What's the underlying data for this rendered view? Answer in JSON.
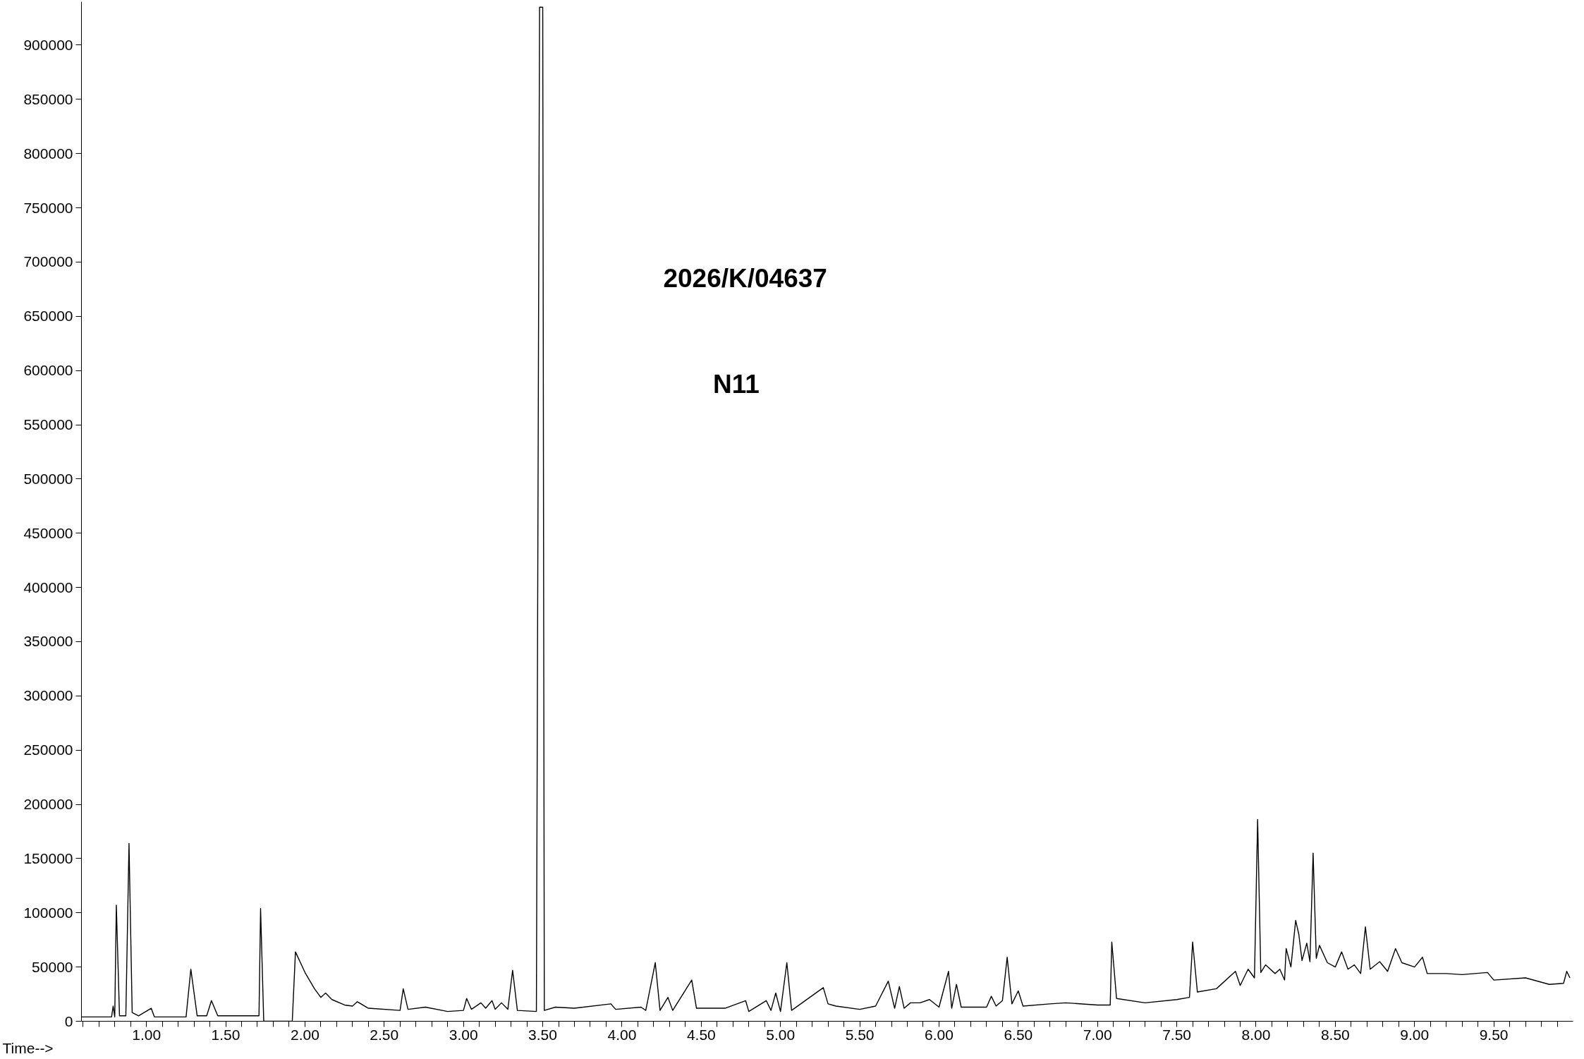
{
  "chart_data": {
    "type": "line",
    "xlabel": "Time-->",
    "annotations": [
      "2026/K/04637",
      "N11"
    ],
    "xlim": [
      0.59,
      10.0
    ],
    "ylim": [
      0,
      940000
    ],
    "xticks": [
      {
        "value": 0.6,
        "label": null
      },
      {
        "value": 0.7,
        "label": null
      },
      {
        "value": 0.8,
        "label": null
      },
      {
        "value": 0.9,
        "label": null
      },
      {
        "value": 1.0,
        "label": "1.00"
      },
      {
        "value": 1.1,
        "label": null
      },
      {
        "value": 1.2,
        "label": null
      },
      {
        "value": 1.3,
        "label": null
      },
      {
        "value": 1.4,
        "label": null
      },
      {
        "value": 1.5,
        "label": "1.50"
      },
      {
        "value": 1.6,
        "label": null
      },
      {
        "value": 1.7,
        "label": null
      },
      {
        "value": 1.8,
        "label": null
      },
      {
        "value": 1.9,
        "label": null
      },
      {
        "value": 2.0,
        "label": "2.00"
      },
      {
        "value": 2.1,
        "label": null
      },
      {
        "value": 2.2,
        "label": null
      },
      {
        "value": 2.3,
        "label": null
      },
      {
        "value": 2.4,
        "label": null
      },
      {
        "value": 2.5,
        "label": "2.50"
      },
      {
        "value": 2.6,
        "label": null
      },
      {
        "value": 2.7,
        "label": null
      },
      {
        "value": 2.8,
        "label": null
      },
      {
        "value": 2.9,
        "label": null
      },
      {
        "value": 3.0,
        "label": "3.00"
      },
      {
        "value": 3.1,
        "label": null
      },
      {
        "value": 3.2,
        "label": null
      },
      {
        "value": 3.3,
        "label": null
      },
      {
        "value": 3.4,
        "label": null
      },
      {
        "value": 3.5,
        "label": "3.50"
      },
      {
        "value": 3.6,
        "label": null
      },
      {
        "value": 3.7,
        "label": null
      },
      {
        "value": 3.8,
        "label": null
      },
      {
        "value": 3.9,
        "label": null
      },
      {
        "value": 4.0,
        "label": "4.00"
      },
      {
        "value": 4.1,
        "label": null
      },
      {
        "value": 4.2,
        "label": null
      },
      {
        "value": 4.3,
        "label": null
      },
      {
        "value": 4.4,
        "label": null
      },
      {
        "value": 4.5,
        "label": "4.50"
      },
      {
        "value": 4.6,
        "label": null
      },
      {
        "value": 4.7,
        "label": null
      },
      {
        "value": 4.8,
        "label": null
      },
      {
        "value": 4.9,
        "label": null
      },
      {
        "value": 5.0,
        "label": "5.00"
      },
      {
        "value": 5.1,
        "label": null
      },
      {
        "value": 5.2,
        "label": null
      },
      {
        "value": 5.3,
        "label": null
      },
      {
        "value": 5.4,
        "label": null
      },
      {
        "value": 5.5,
        "label": "5.50"
      },
      {
        "value": 5.6,
        "label": null
      },
      {
        "value": 5.7,
        "label": null
      },
      {
        "value": 5.8,
        "label": null
      },
      {
        "value": 5.9,
        "label": null
      },
      {
        "value": 6.0,
        "label": "6.00"
      },
      {
        "value": 6.1,
        "label": null
      },
      {
        "value": 6.2,
        "label": null
      },
      {
        "value": 6.3,
        "label": null
      },
      {
        "value": 6.4,
        "label": null
      },
      {
        "value": 6.5,
        "label": "6.50"
      },
      {
        "value": 6.6,
        "label": null
      },
      {
        "value": 6.7,
        "label": null
      },
      {
        "value": 6.8,
        "label": null
      },
      {
        "value": 6.9,
        "label": null
      },
      {
        "value": 7.0,
        "label": "7.00"
      },
      {
        "value": 7.1,
        "label": null
      },
      {
        "value": 7.2,
        "label": null
      },
      {
        "value": 7.3,
        "label": null
      },
      {
        "value": 7.4,
        "label": null
      },
      {
        "value": 7.5,
        "label": "7.50"
      },
      {
        "value": 7.6,
        "label": null
      },
      {
        "value": 7.7,
        "label": null
      },
      {
        "value": 7.8,
        "label": null
      },
      {
        "value": 7.9,
        "label": null
      },
      {
        "value": 8.0,
        "label": "8.00"
      },
      {
        "value": 8.1,
        "label": null
      },
      {
        "value": 8.2,
        "label": null
      },
      {
        "value": 8.3,
        "label": null
      },
      {
        "value": 8.4,
        "label": null
      },
      {
        "value": 8.5,
        "label": "8.50"
      },
      {
        "value": 8.6,
        "label": null
      },
      {
        "value": 8.7,
        "label": null
      },
      {
        "value": 8.8,
        "label": null
      },
      {
        "value": 8.9,
        "label": null
      },
      {
        "value": 9.0,
        "label": "9.00"
      },
      {
        "value": 9.1,
        "label": null
      },
      {
        "value": 9.2,
        "label": null
      },
      {
        "value": 9.3,
        "label": null
      },
      {
        "value": 9.4,
        "label": null
      },
      {
        "value": 9.5,
        "label": "9.50"
      },
      {
        "value": 9.6,
        "label": null
      },
      {
        "value": 9.7,
        "label": null
      },
      {
        "value": 9.8,
        "label": null
      },
      {
        "value": 9.9,
        "label": null
      }
    ],
    "yticks": [
      0,
      50000,
      100000,
      150000,
      200000,
      250000,
      300000,
      350000,
      400000,
      450000,
      500000,
      550000,
      600000,
      650000,
      700000,
      750000,
      800000,
      850000,
      900000
    ],
    "grid": false,
    "marker": "none",
    "line_style": "solid",
    "series": [
      {
        "color": "#000000",
        "x": [
          0.59,
          0.78,
          0.79,
          0.8,
          0.81,
          0.83,
          0.87,
          0.89,
          0.91,
          0.95,
          1.03,
          1.05,
          1.25,
          1.28,
          1.32,
          1.38,
          1.41,
          1.45,
          1.71,
          1.72,
          1.74,
          1.92,
          1.94,
          2.0,
          2.06,
          2.1,
          2.13,
          2.17,
          2.25,
          2.3,
          2.33,
          2.4,
          2.6,
          2.62,
          2.65,
          2.76,
          2.9,
          3.0,
          3.02,
          3.05,
          3.11,
          3.14,
          3.18,
          3.2,
          3.24,
          3.28,
          3.31,
          3.34,
          3.46,
          3.48,
          3.5,
          3.51,
          3.58,
          3.7,
          3.93,
          3.96,
          4.12,
          4.15,
          4.21,
          4.24,
          4.29,
          4.32,
          4.44,
          4.47,
          4.65,
          4.78,
          4.8,
          4.91,
          4.94,
          4.97,
          5.0,
          5.04,
          5.07,
          5.27,
          5.3,
          5.35,
          5.5,
          5.6,
          5.68,
          5.72,
          5.75,
          5.78,
          5.82,
          5.88,
          5.94,
          6.0,
          6.06,
          6.08,
          6.11,
          6.14,
          6.3,
          6.33,
          6.36,
          6.4,
          6.43,
          6.46,
          6.5,
          6.53,
          6.7,
          6.8,
          7.0,
          7.08,
          7.09,
          7.12,
          7.3,
          7.5,
          7.58,
          7.6,
          7.63,
          7.75,
          7.87,
          7.9,
          7.95,
          7.99,
          8.01,
          8.03,
          8.06,
          8.12,
          8.15,
          8.18,
          8.19,
          8.22,
          8.25,
          8.27,
          8.29,
          8.32,
          8.34,
          8.36,
          8.38,
          8.4,
          8.45,
          8.5,
          8.54,
          8.58,
          8.62,
          8.66,
          8.69,
          8.72,
          8.78,
          8.83,
          8.88,
          8.92,
          9.0,
          9.05,
          9.08,
          9.2,
          9.3,
          9.46,
          9.5,
          9.7,
          9.85,
          9.94,
          9.96,
          9.98
        ],
        "values": [
          4000,
          4000,
          14000,
          4000,
          107000,
          5000,
          5000,
          164000,
          8000,
          5000,
          12000,
          4000,
          4000,
          48000,
          5000,
          5000,
          19000,
          5000,
          5000,
          104000,
          0,
          0,
          64000,
          45000,
          30000,
          22000,
          26000,
          20000,
          15000,
          14000,
          18000,
          12000,
          10000,
          30000,
          11000,
          13000,
          9000,
          10000,
          21000,
          11000,
          17000,
          12000,
          19000,
          11000,
          17000,
          11000,
          47000,
          10000,
          9000,
          935000,
          935000,
          10000,
          13000,
          12000,
          16000,
          11000,
          13000,
          10000,
          54000,
          10000,
          22000,
          10000,
          38000,
          12000,
          12000,
          19000,
          9000,
          19000,
          10000,
          26000,
          9000,
          54000,
          10000,
          31000,
          16000,
          14000,
          11000,
          14000,
          37000,
          12000,
          32000,
          12000,
          17000,
          17000,
          20000,
          13000,
          46000,
          12000,
          34000,
          13000,
          13000,
          23000,
          14000,
          19000,
          59000,
          16000,
          28000,
          14000,
          16000,
          17000,
          15000,
          15000,
          73000,
          21000,
          17000,
          20000,
          22000,
          73000,
          27000,
          30000,
          46000,
          33000,
          48000,
          40000,
          186000,
          45000,
          52000,
          44000,
          48000,
          38000,
          67000,
          50000,
          93000,
          80000,
          56000,
          72000,
          55000,
          155000,
          58000,
          70000,
          54000,
          50000,
          64000,
          48000,
          52000,
          44000,
          87000,
          48000,
          55000,
          46000,
          67000,
          54000,
          50000,
          59000,
          44000,
          44000,
          43000,
          45000,
          38000,
          40000,
          34000,
          35000,
          46000,
          40000
        ]
      }
    ]
  }
}
